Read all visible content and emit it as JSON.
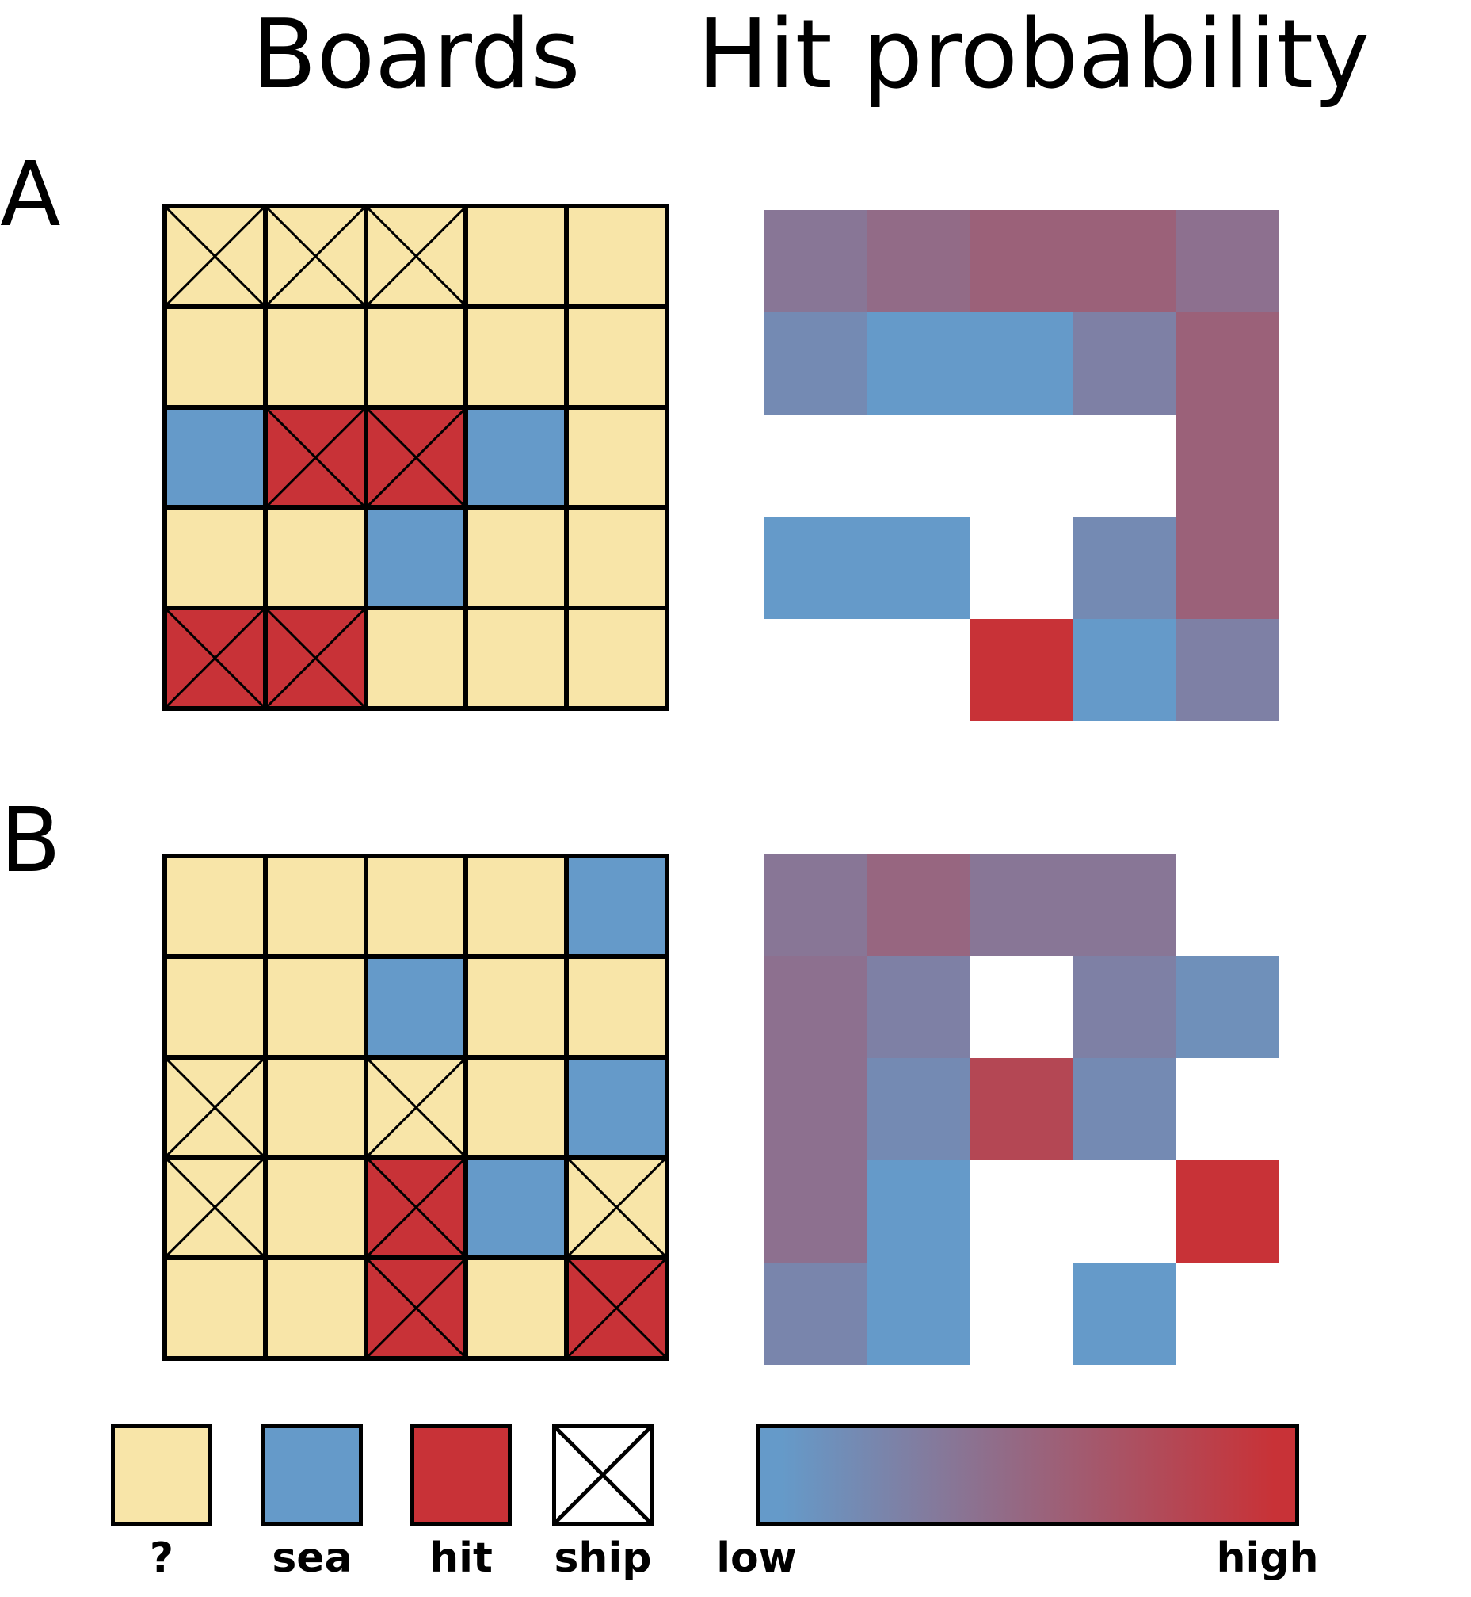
{
  "titles": {
    "boards": "Boards",
    "hit_probability": "Hit probability"
  },
  "colors": {
    "unknown": "#f8e5a8",
    "sea": "#659ac9",
    "hit": "#c83237",
    "empty": "#ffffff",
    "scale_low": "#659ac9",
    "scale_high": "#c83237"
  },
  "panels": [
    {
      "label": "A",
      "board": [
        [
          "?x",
          "?x",
          "?x",
          "?",
          "?"
        ],
        [
          "?",
          "?",
          "?",
          "?",
          "?"
        ],
        [
          "sea",
          "hitx",
          "hitx",
          "sea",
          "?"
        ],
        [
          "?",
          "?",
          "sea",
          "?",
          "?"
        ],
        [
          "hitx",
          "hitx",
          "?",
          "?",
          "?"
        ]
      ],
      "probability": [
        [
          0.35,
          0.45,
          0.55,
          0.55,
          0.4
        ],
        [
          0.15,
          0.0,
          0.0,
          0.25,
          0.55
        ],
        [
          null,
          null,
          null,
          null,
          0.55
        ],
        [
          0.0,
          0.0,
          null,
          0.15,
          0.55
        ],
        [
          null,
          null,
          1.0,
          0.0,
          0.25
        ]
      ]
    },
    {
      "label": "B",
      "board": [
        [
          "?",
          "?",
          "?",
          "?",
          "sea"
        ],
        [
          "?",
          "?",
          "sea",
          "?",
          "?"
        ],
        [
          "?x",
          "?",
          "?x",
          "?",
          "sea"
        ],
        [
          "?x",
          "?",
          "hitx",
          "sea",
          "?x"
        ],
        [
          "?",
          "?",
          "hitx",
          "?",
          "hitx"
        ]
      ],
      "probability": [
        [
          0.35,
          0.5,
          0.35,
          0.35,
          null
        ],
        [
          0.4,
          0.25,
          null,
          0.25,
          0.1
        ],
        [
          0.4,
          0.15,
          0.8,
          0.15,
          null
        ],
        [
          0.4,
          0.0,
          null,
          null,
          1.0
        ],
        [
          0.2,
          0.0,
          null,
          0.0,
          null
        ]
      ]
    }
  ],
  "legend": [
    {
      "key": "unknown",
      "label": "?"
    },
    {
      "key": "sea",
      "label": "sea"
    },
    {
      "key": "hit",
      "label": "hit"
    },
    {
      "key": "ship",
      "label": "ship"
    }
  ],
  "colorbar": {
    "low_label": "low",
    "high_label": "high"
  }
}
